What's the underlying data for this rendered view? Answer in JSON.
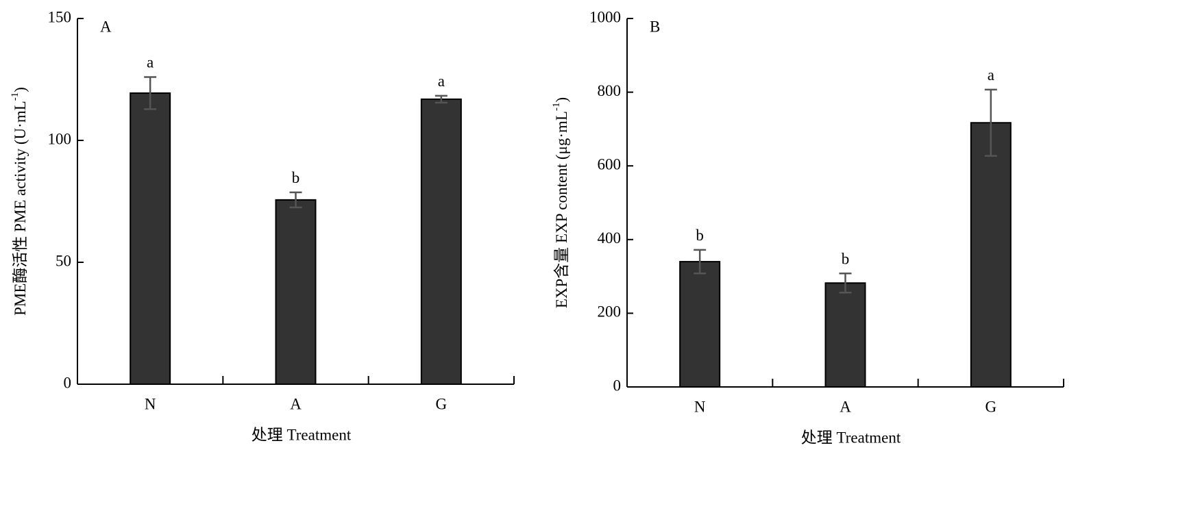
{
  "chart_data": [
    {
      "type": "bar",
      "panel": "A",
      "categories": [
        "N",
        "A",
        "G"
      ],
      "values": [
        119.4,
        75.6,
        116.9
      ],
      "errors": [
        6.6,
        3.1,
        1.4
      ],
      "significance": [
        "a",
        "b",
        "a"
      ],
      "color": "#333333",
      "error_color": "#555555",
      "x_label": "处理 Treatment",
      "y_label": {
        "text": "PME酶活性 PME activity (U·mL",
        "superscript": "-1",
        "suffix": ")"
      },
      "ylim": [
        0,
        150
      ],
      "yticks": [
        0,
        50,
        100,
        150
      ],
      "grid": false
    },
    {
      "type": "bar",
      "panel": "B",
      "categories": [
        "N",
        "A",
        "G"
      ],
      "values": [
        340,
        282,
        717
      ],
      "errors": [
        32,
        26,
        90
      ],
      "significance": [
        "b",
        "b",
        "a"
      ],
      "color": "#333333",
      "error_color": "#555555",
      "x_label": "处理 Treatment",
      "y_label": {
        "text": "EXP含量 EXP content (μg·mL",
        "superscript": "-1",
        "suffix": ")"
      },
      "ylim": [
        0,
        1000
      ],
      "yticks": [
        0,
        200,
        400,
        600,
        800,
        1000
      ],
      "grid": false
    }
  ]
}
